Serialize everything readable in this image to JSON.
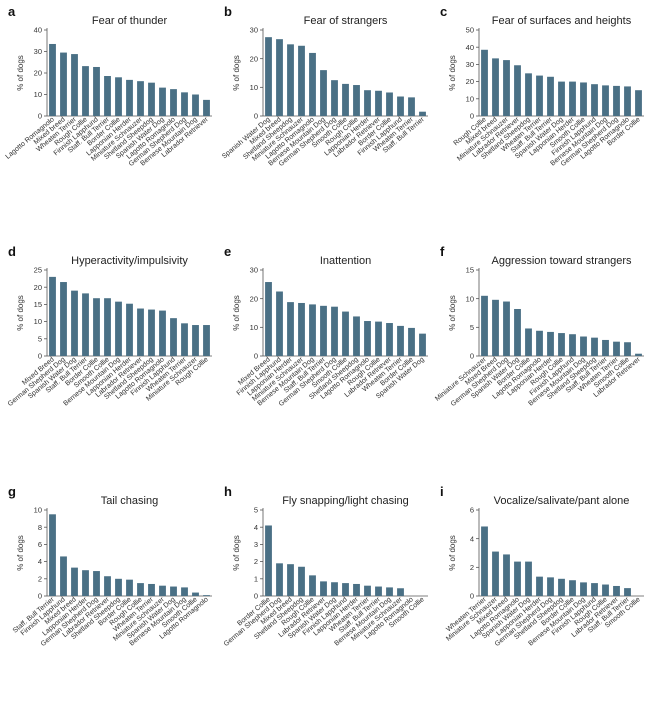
{
  "figure": {
    "bar_color": "#4a7085",
    "axis_color": "#555555"
  },
  "chart_data": [
    {
      "type": "bar",
      "label": "a",
      "title": "Fear of thunder",
      "ylabel": "% of dogs",
      "xlabel": "",
      "ylim": [
        0,
        40
      ],
      "yticks": [
        0,
        10,
        20,
        30,
        40
      ],
      "categories": [
        "Lagotto Romagnolo",
        "Mixed breed",
        "Wheaten Terrier",
        "Rough Collie",
        "Finnish Lapphund",
        "Staff. Bull Terrier",
        "Border Collie",
        "Lapponian Herder",
        "Miniature Schnauzer",
        "Shetland Sheepdog",
        "Spanish Water Dog",
        "Lagotto Romagnolo",
        "German Shepherd Dog",
        "Bernese Mountain Dog",
        "Labrador Retriever"
      ],
      "values": [
        33.5,
        29.5,
        28.8,
        23.2,
        22.8,
        18.6,
        18.0,
        16.8,
        16.2,
        15.5,
        13.2,
        12.5,
        11.0,
        10.0,
        7.5
      ]
    },
    {
      "type": "bar",
      "label": "b",
      "title": "Fear of strangers",
      "ylabel": "% of dogs",
      "xlabel": "",
      "ylim": [
        0,
        30
      ],
      "yticks": [
        0,
        10,
        20,
        30
      ],
      "categories": [
        "Spanish Water Dog",
        "Mixed breed",
        "Shetland Sheepdog",
        "Miniature Schnauzer",
        "Lagotto Romagnolo",
        "Bernese Mountain Dog",
        "German Shepherd Dog",
        "Smooth Collie",
        "Rough Collie",
        "Lapponian Herder",
        "Labrador Retriever",
        "Border Collie",
        "Finnish Lapphund",
        "Wheaten Terrier",
        "Staff. Bull Terrier"
      ],
      "values": [
        27.5,
        26.8,
        25.0,
        24.5,
        22.0,
        16.0,
        12.5,
        11.2,
        10.8,
        9.0,
        8.8,
        8.2,
        6.8,
        6.5,
        1.5
      ]
    },
    {
      "type": "bar",
      "label": "c",
      "title": "Fear of surfaces and heights",
      "ylabel": "% of dogs",
      "xlabel": "",
      "ylim": [
        0,
        50
      ],
      "yticks": [
        0,
        10,
        20,
        30,
        40,
        50
      ],
      "categories": [
        "Rough Collie",
        "Mixed breed",
        "Miniature Schnauzer",
        "Labrador Retriever",
        "Shetland Sheepdog",
        "Wheaten Terrier",
        "Staff. Bull Terrier",
        "Spanish Water Dog",
        "Lapponian Herder",
        "Smooth Collie",
        "Finnish Lapphund",
        "Bernese Mountain Dog",
        "German Shepherd Dog",
        "Lagotto Romagnolo",
        "Border Collie"
      ],
      "values": [
        38.5,
        33.5,
        32.5,
        29.5,
        24.8,
        23.5,
        22.8,
        20.0,
        20.0,
        19.5,
        18.5,
        17.8,
        17.5,
        17.2,
        15.0
      ]
    },
    {
      "type": "bar",
      "label": "d",
      "title": "Hyperactivity/impulsivity",
      "ylabel": "% of dogs",
      "xlabel": "",
      "ylim": [
        0,
        25
      ],
      "yticks": [
        0,
        5,
        10,
        15,
        20,
        25
      ],
      "categories": [
        "Mixed Breed",
        "German Shepherd Dog",
        "Spanish Water Dog",
        "Staff. Bull Terrier",
        "Border Collie",
        "Smooth Collie",
        "Bernese Mountain Dog",
        "Lapponian Herder",
        "Labrador Retriever",
        "Shetland Sheepdog",
        "Lagotto Romagnolo",
        "Finnish Lapphund",
        "Wheaten Terrier",
        "Miniature Schnauzer",
        "Rough Collie"
      ],
      "values": [
        23.0,
        21.5,
        19.0,
        18.2,
        16.8,
        16.8,
        15.8,
        15.2,
        13.8,
        13.5,
        13.2,
        11.0,
        9.5,
        9.0,
        9.0
      ]
    },
    {
      "type": "bar",
      "label": "e",
      "title": "Inattention",
      "ylabel": "% of dogs",
      "xlabel": "",
      "ylim": [
        0,
        30
      ],
      "yticks": [
        0,
        10,
        20,
        30
      ],
      "categories": [
        "Mixed Breed",
        "Finnish Lapphund",
        "Lapponian Herder",
        "Miniature Schnauzer",
        "Bernese Mountain Dog",
        "Staff. Bull Terrier",
        "German Shepherd Dog",
        "Smooth Collie",
        "Shetland Sheepdog",
        "Lagotto Romagnolo",
        "Rough Collie",
        "Labrador Retriever",
        "Wheaten Terrier",
        "Border Collie",
        "Spanish Water Dog"
      ],
      "values": [
        25.8,
        22.5,
        18.8,
        18.5,
        18.0,
        17.5,
        17.2,
        15.5,
        13.8,
        12.2,
        12.0,
        11.5,
        10.5,
        9.8,
        7.8
      ]
    },
    {
      "type": "bar",
      "label": "f",
      "title": "Aggression toward strangers",
      "ylabel": "% of dogs",
      "xlabel": "",
      "ylim": [
        0,
        15
      ],
      "yticks": [
        0,
        5,
        10,
        15
      ],
      "categories": [
        "Miniature Schnauzer",
        "Mixed Breed",
        "German Shepherd Dog",
        "Spanish Water Dog",
        "Border Collie",
        "Lagotto Romagnolo",
        "Lapponian Herder",
        "Rough Collie",
        "Finnish Lapphund",
        "Bernese Mountain Dog",
        "Shetland Sheepdog",
        "Staff. Bull Terrier",
        "Wheaten Terrier",
        "Smooth Collie",
        "Labrador Retriever"
      ],
      "values": [
        10.5,
        9.8,
        9.5,
        8.2,
        4.8,
        4.4,
        4.2,
        4.0,
        3.8,
        3.4,
        3.2,
        2.8,
        2.5,
        2.4,
        0.4
      ]
    },
    {
      "type": "bar",
      "label": "g",
      "title": "Tail chasing",
      "ylabel": "% of dogs",
      "xlabel": "",
      "ylim": [
        0,
        10
      ],
      "yticks": [
        0,
        2,
        4,
        6,
        8,
        10
      ],
      "categories": [
        "Staff. Bull Terrier",
        "Finnish Lapphund",
        "Mixed breed",
        "Lapponian Herder",
        "German Shepherd Dog",
        "Labrador Retriever",
        "Shetland Sheepdog",
        "Border Collie",
        "Rough Collie",
        "Wheaten Terrier",
        "Miniature Schnauzer",
        "Spanish Water Dog",
        "Bernese Mountain Dog",
        "Smooth Collie",
        "Lagotto Romagnolo"
      ],
      "values": [
        9.5,
        4.6,
        3.3,
        3.0,
        2.9,
        2.3,
        2.0,
        1.9,
        1.5,
        1.4,
        1.2,
        1.1,
        1.0,
        0.4,
        0.1
      ]
    },
    {
      "type": "bar",
      "label": "h",
      "title": "Fly snapping/light chasing",
      "ylabel": "% of dogs",
      "xlabel": "",
      "ylim": [
        0,
        5
      ],
      "yticks": [
        0,
        1,
        2,
        3,
        4,
        5
      ],
      "categories": [
        "Border Collie",
        "German Shepherd Dog",
        "Mixed breed",
        "Shetland Sheepdog",
        "Rough Collie",
        "Labrador Retriever",
        "Spanish Water Dog",
        "Finnish Lapphund",
        "Lapponian Herder",
        "Wheaten Terrier",
        "Staff. Bull Terrier",
        "Bernese Mountain Dog",
        "Miniature Schnauzer",
        "Lagotto Romagnolo",
        "Smooth Collie"
      ],
      "values": [
        4.1,
        1.9,
        1.85,
        1.7,
        1.2,
        0.85,
        0.8,
        0.75,
        0.7,
        0.6,
        0.55,
        0.5,
        0.45,
        0.0,
        0.0
      ]
    },
    {
      "type": "bar",
      "label": "i",
      "title": "Vocalize/salivate/pant alone",
      "ylabel": "% of dogs",
      "xlabel": "",
      "ylim": [
        0,
        6
      ],
      "yticks": [
        0,
        2,
        4,
        6
      ],
      "categories": [
        "Wheaten Terrier",
        "Miniature Schnauzer",
        "Mixed breed",
        "Lagotto Romagnolo",
        "Spanish Water Dog",
        "Lapponian Herder",
        "German Shepherd Dog",
        "Shetland Sheepdog",
        "Border Collie",
        "Bernese Mountain Dog",
        "Finnish Lapphund",
        "Rough Collie",
        "Labrador Retriever",
        "Staff. Bull Terrier",
        "Smooth Collie"
      ],
      "values": [
        4.85,
        3.1,
        2.9,
        2.4,
        2.4,
        1.35,
        1.3,
        1.2,
        1.1,
        0.95,
        0.9,
        0.8,
        0.7,
        0.55,
        0.0
      ]
    }
  ]
}
